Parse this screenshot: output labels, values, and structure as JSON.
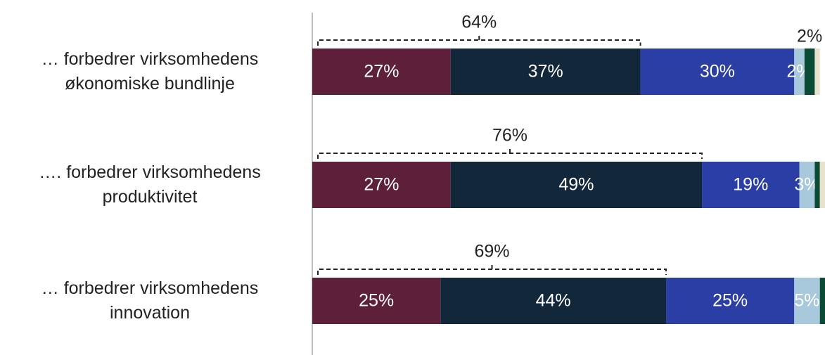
{
  "chart_data": {
    "type": "stacked-bar-horizontal",
    "categories": [
      "… forbedrer virksomhedens\nøkonomiske bundlinje",
      "…. forbedrer virksomhedens\nproduktivitet",
      "… forbedrer virksomhedens\ninnovation"
    ],
    "series": [
      {
        "color": "#5e1f3a",
        "values": [
          27,
          27,
          25
        ],
        "value_labels": [
          "27%",
          "27%",
          "25%"
        ]
      },
      {
        "color": "#13273b",
        "values": [
          37,
          49,
          44
        ],
        "value_labels": [
          "37%",
          "49%",
          "44%"
        ]
      },
      {
        "color": "#2a3ea6",
        "values": [
          30,
          19,
          25
        ],
        "value_labels": [
          "30%",
          "19%",
          "25%"
        ]
      },
      {
        "color": "#a8c8dc",
        "values": [
          2,
          3,
          5
        ],
        "value_labels": [
          "2%",
          "3%",
          "5%"
        ]
      },
      {
        "color": "#0b4a34",
        "values": [
          2,
          1,
          1
        ],
        "value_labels": [
          "2%",
          null,
          null
        ]
      },
      {
        "color": "#e8e2cc",
        "values": [
          1,
          1,
          0
        ]
      }
    ],
    "bracket_values": [
      64,
      76,
      69
    ],
    "bracket_labels": [
      "64%",
      "76%",
      "69%"
    ],
    "xlim": [
      0,
      100
    ]
  }
}
